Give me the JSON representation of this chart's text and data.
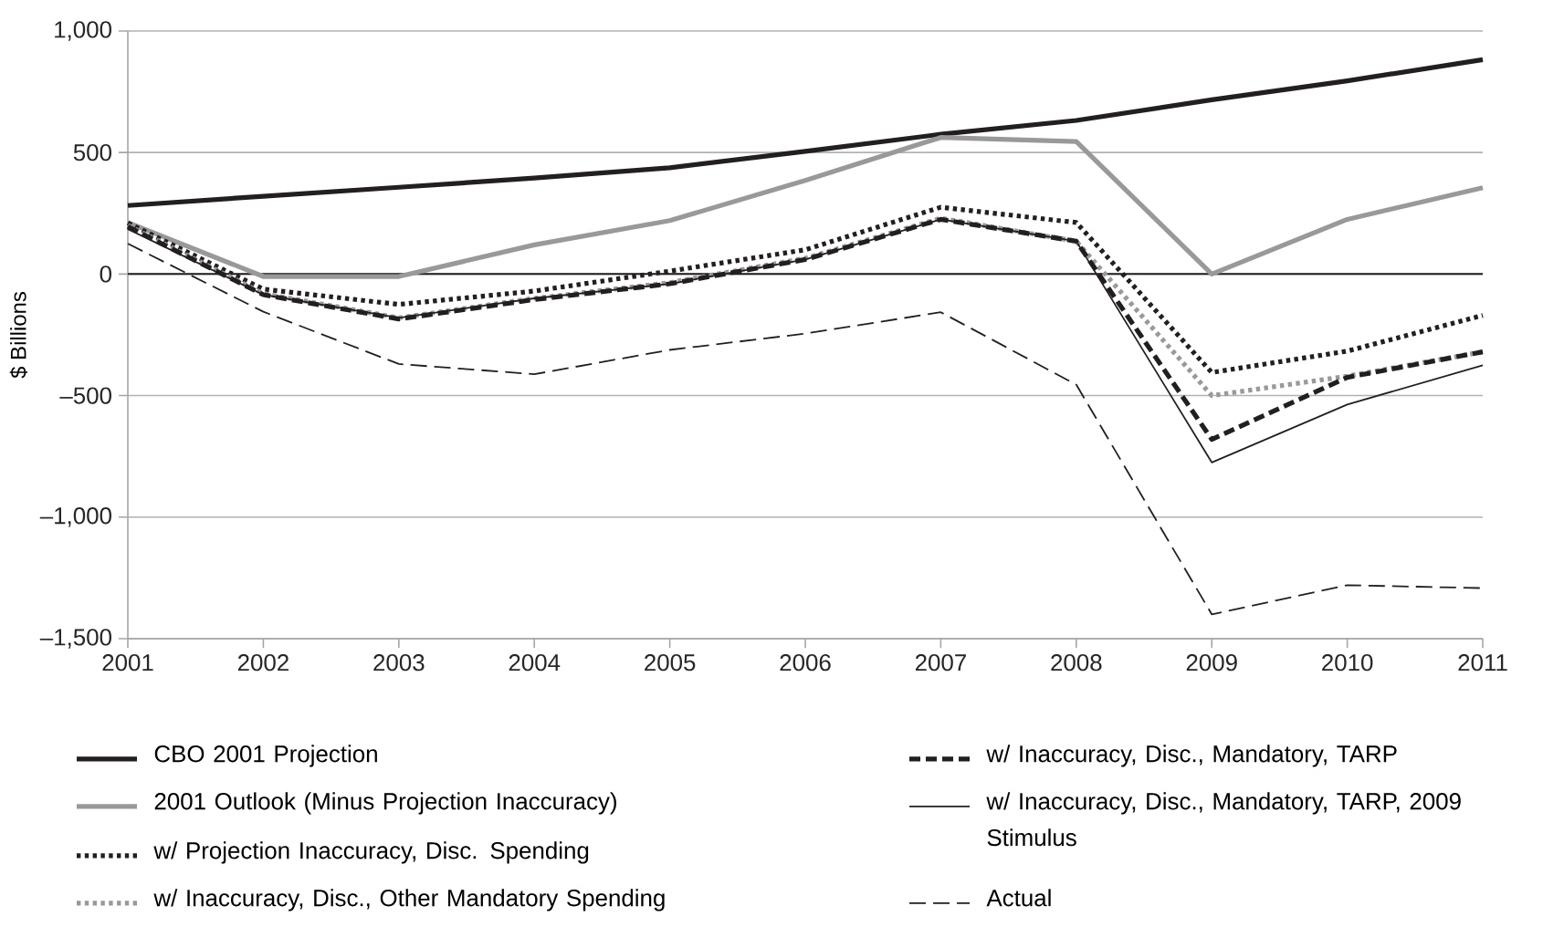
{
  "chart_data": {
    "type": "line",
    "ylabel": "$ Billions",
    "x": [
      2001,
      2002,
      2003,
      2004,
      2005,
      2006,
      2007,
      2008,
      2009,
      2010,
      2011
    ],
    "xlim": [
      2001,
      2011
    ],
    "xticks": [
      2001,
      2002,
      2003,
      2004,
      2005,
      2006,
      2007,
      2008,
      2009,
      2010,
      2011
    ],
    "ylim": [
      -1500,
      1000
    ],
    "yticks": [
      {
        "value": -1500,
        "label": "–1,500"
      },
      {
        "value": -1000,
        "label": "–1,000"
      },
      {
        "value": -500,
        "label": "–500"
      },
      0,
      500,
      {
        "value": 1000,
        "label": "1,000"
      }
    ],
    "grid": "y",
    "legend": "bottom",
    "marker": "none",
    "ref_lines": [
      {
        "axis": "y",
        "value": 0,
        "color": "#231f20"
      }
    ],
    "series": [
      {
        "name": "CBO 2001 Projection",
        "color": "#231f20",
        "line_style": "solid",
        "values": [
          282,
          320,
          357,
          395,
          437,
          505,
          575,
          632,
          717,
          795,
          882
        ]
      },
      {
        "name": "2001 Outlook (Minus Projection Inaccuracy)",
        "color": "#999999",
        "line_style": "solid",
        "values": [
          212,
          -10,
          -10,
          120,
          220,
          385,
          562,
          545,
          0,
          225,
          355
        ]
      },
      {
        "name": "w/ Projection Inaccuracy, Disc. Spending",
        "color": "#231f20",
        "line_style": "dotted",
        "values": [
          210,
          -62,
          -125,
          -70,
          12,
          100,
          275,
          212,
          -405,
          -317,
          -170
        ]
      },
      {
        "name": "w/ Inaccuracy, Disc., Other Mandatory Spending",
        "color": "#999999",
        "line_style": "dotted",
        "values": [
          200,
          -80,
          -180,
          -100,
          -35,
          65,
          230,
          135,
          -500,
          -420,
          -320
        ]
      },
      {
        "name": "w/ Inaccuracy, Disc., Mandatory, TARP",
        "color": "#231f20",
        "line_style": "dashed",
        "values": [
          195,
          -85,
          -185,
          -105,
          -40,
          60,
          225,
          135,
          -680,
          -425,
          -320
        ]
      },
      {
        "name": "w/ Inaccuracy, Disc., Mandatory, TARP, 2009 Stimulus",
        "color": "#231f20",
        "line_style": "solid",
        "values": [
          185,
          -85,
          -180,
          -100,
          -40,
          60,
          225,
          135,
          -775,
          -537,
          -375
        ]
      },
      {
        "name": "Actual",
        "color": "#231f20",
        "line_style": "dashed",
        "values": [
          125,
          -155,
          -370,
          -412,
          -312,
          -245,
          -157,
          -455,
          -1400,
          -1280,
          -1292
        ]
      }
    ]
  }
}
